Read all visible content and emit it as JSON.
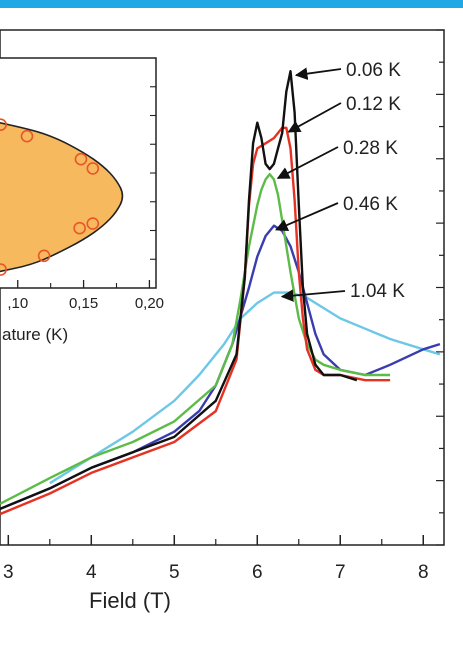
{
  "chart_data": [
    {
      "type": "line",
      "xlabel": "Field (T)",
      "xlim": [
        2.9,
        8.25
      ],
      "ylim": [
        0,
        100
      ],
      "xticks": [
        "3",
        "4",
        "5",
        "6",
        "7",
        "8"
      ],
      "series": [
        {
          "name": "0.06 K",
          "color": "#111111",
          "x": [
            2.9,
            3.5,
            4.0,
            4.5,
            5.0,
            5.5,
            5.75,
            5.85,
            5.9,
            5.95,
            6.0,
            6.05,
            6.1,
            6.15,
            6.2,
            6.25,
            6.3,
            6.35,
            6.4,
            6.45,
            6.5,
            6.55,
            6.6,
            6.7,
            6.8,
            7.0,
            7.2
          ],
          "y": [
            7,
            11,
            15,
            18,
            21,
            28,
            37,
            52,
            67,
            78,
            82,
            79,
            74,
            73,
            74,
            77,
            80,
            88,
            92,
            84,
            66,
            50,
            41,
            35,
            33,
            33,
            32
          ]
        },
        {
          "name": "0.12 K",
          "color": "#e53222",
          "x": [
            2.9,
            3.5,
            4.0,
            4.5,
            5.0,
            5.5,
            5.75,
            5.85,
            5.9,
            5.95,
            6.0,
            6.1,
            6.2,
            6.3,
            6.35,
            6.4,
            6.45,
            6.5,
            6.55,
            6.6,
            6.7,
            6.8,
            7.0,
            7.3,
            7.6
          ],
          "y": [
            6,
            10,
            14,
            17,
            20,
            26,
            36,
            52,
            66,
            74,
            77,
            78,
            79,
            81,
            81,
            77,
            67,
            53,
            44,
            38,
            34,
            33,
            33,
            32,
            32
          ]
        },
        {
          "name": "0.28 K",
          "color": "#5dbb47",
          "x": [
            2.9,
            3.5,
            4.0,
            4.5,
            5.0,
            5.5,
            5.7,
            5.8,
            5.9,
            6.0,
            6.05,
            6.1,
            6.15,
            6.2,
            6.25,
            6.3,
            6.4,
            6.5,
            6.6,
            6.7,
            6.8,
            7.0,
            7.3,
            7.6
          ],
          "y": [
            8,
            13,
            17,
            20,
            24,
            31,
            39,
            48,
            58,
            66,
            69,
            71,
            72,
            71,
            68,
            63,
            53,
            44,
            39,
            36,
            35,
            34,
            33,
            33
          ]
        },
        {
          "name": "0.46 K",
          "color": "#3a3cb0",
          "x": [
            2.9,
            3.5,
            4.0,
            4.5,
            5.0,
            5.3,
            5.5,
            5.7,
            5.9,
            6.0,
            6.1,
            6.2,
            6.3,
            6.4,
            6.5,
            6.6,
            6.7,
            6.8,
            7.0,
            7.3,
            7.6,
            8.0,
            8.2
          ],
          "y": [
            7,
            11,
            15,
            18,
            22,
            26,
            31,
            39,
            50,
            56,
            60,
            62,
            61,
            58,
            53,
            47,
            41,
            37,
            34,
            33,
            35,
            38,
            39
          ]
        },
        {
          "name": "1.04 K",
          "color": "#6cc8e6",
          "x": [
            3.5,
            4.0,
            4.5,
            5.0,
            5.3,
            5.6,
            5.8,
            6.0,
            6.2,
            6.4,
            6.6,
            6.8,
            7.0,
            7.3,
            7.6,
            8.0,
            8.2
          ],
          "y": [
            12,
            17,
            22,
            28,
            33,
            39,
            44,
            47,
            49,
            49,
            48,
            46,
            44,
            42,
            40,
            38,
            37
          ]
        }
      ]
    },
    {
      "type": "area",
      "xlabel": "ature (K)",
      "xticks": [
        ",10",
        "0,15",
        "0,20"
      ],
      "xlim": [
        0.085,
        0.205
      ],
      "ylim": [
        0,
        100
      ],
      "fill_color": "#f7b95e",
      "marker_color": "#e8562a",
      "boundary": {
        "x": [
          0.085,
          0.11,
          0.13,
          0.15,
          0.165,
          0.175,
          0.181,
          0.175,
          0.165,
          0.15,
          0.13,
          0.11,
          0.085
        ],
        "y": [
          72,
          69,
          65,
          59,
          53,
          47,
          40,
          33,
          27,
          21,
          15,
          10,
          7
        ]
      },
      "points": {
        "x": [
          0.087,
          0.107,
          0.148,
          0.157,
          0.147,
          0.157,
          0.12,
          0.087
        ],
        "y": [
          71,
          66,
          56,
          52,
          26,
          28,
          14,
          8
        ]
      }
    }
  ]
}
